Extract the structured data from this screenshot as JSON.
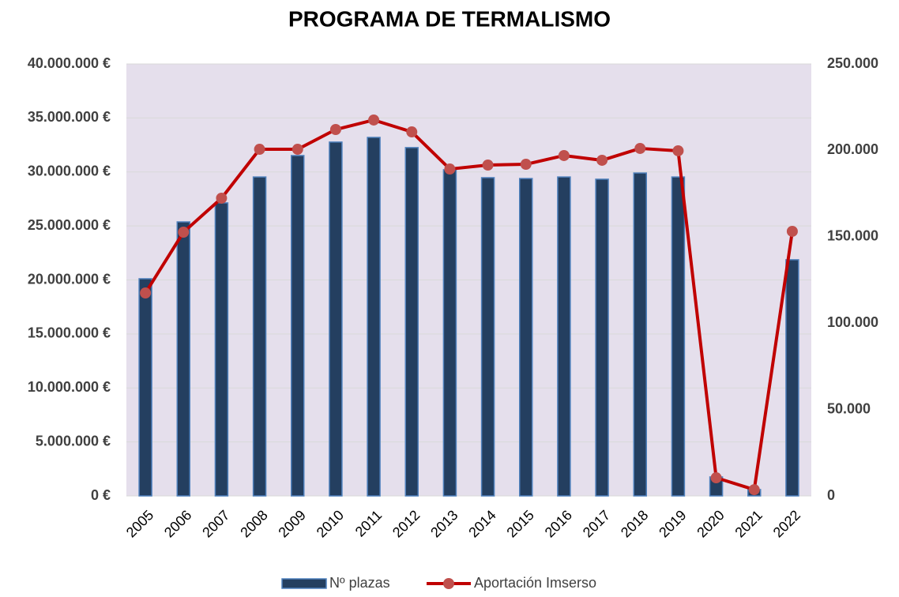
{
  "chart_data": {
    "type": "bar_line",
    "title": "PROGRAMA DE TERMALISMO",
    "categories": [
      "2005",
      "2006",
      "2007",
      "2008",
      "2009",
      "2010",
      "2011",
      "2012",
      "2013",
      "2014",
      "2015",
      "2016",
      "2017",
      "2018",
      "2019",
      "2020",
      "2021",
      "2022"
    ],
    "series": [
      {
        "name": "Nº plazas",
        "type": "bar",
        "axis": "y2",
        "color": "#243f60",
        "values": [
          125700,
          158600,
          169600,
          184600,
          197000,
          204800,
          207500,
          201600,
          188800,
          184200,
          183700,
          184600,
          183300,
          186900,
          184600,
          11000,
          3700,
          136700
        ]
      },
      {
        "name": "Aportación Imserso",
        "type": "line",
        "axis": "y",
        "color": "#c00000",
        "marker_color": "#c0504d",
        "values": [
          18790000,
          24420000,
          27570000,
          32100000,
          32100000,
          33930000,
          34810000,
          33710000,
          30270000,
          30640000,
          30710000,
          31520000,
          31080000,
          32180000,
          31960000,
          1680000,
          580000,
          24500000
        ]
      }
    ],
    "ylim": [
      0,
      40000000
    ],
    "yticks": [
      {
        "value": 0,
        "label": "0 €"
      },
      {
        "value": 5000000,
        "label": "5.000.000 €"
      },
      {
        "value": 10000000,
        "label": "10.000.000 €"
      },
      {
        "value": 15000000,
        "label": "15.000.000 €"
      },
      {
        "value": 20000000,
        "label": "20.000.000 €"
      },
      {
        "value": 25000000,
        "label": "25.000.000 €"
      },
      {
        "value": 30000000,
        "label": "30.000.000 €"
      },
      {
        "value": 35000000,
        "label": "35.000.000 €"
      },
      {
        "value": 40000000,
        "label": "40.000.000 €"
      }
    ],
    "y2lim": [
      0,
      250000
    ],
    "y2ticks": [
      0,
      {
        "value": 50000,
        "label": "50.000"
      },
      {
        "value": 100000,
        "label": "100.000"
      },
      {
        "value": 150000,
        "label": "150.000"
      },
      {
        "value": 200000,
        "label": "200.000"
      },
      {
        "value": 250000,
        "label": "250.000"
      }
    ],
    "grid": true,
    "legend": "bottom"
  }
}
